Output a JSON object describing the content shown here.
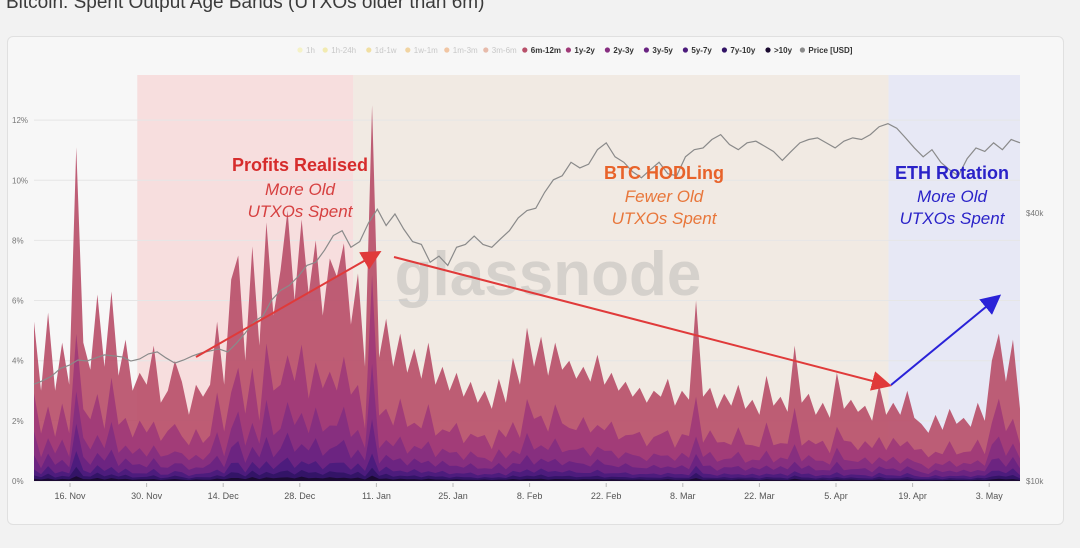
{
  "page": {
    "title": "Bitcoin: Spent Output Age Bands (UTXOs older than 6m)"
  },
  "watermark": "glassnode",
  "annotations": {
    "profits": {
      "title": "Profits Realised",
      "line1": "More Old",
      "line2": "UTXOs Spent",
      "title_color": "#d62c2c",
      "body_color": "#d64040"
    },
    "hodl": {
      "title": "BTC HODLing",
      "line1": "Fewer Old",
      "line2": "UTXOs Spent",
      "title_color": "#e8632a",
      "body_color": "#e8763a"
    },
    "eth": {
      "title": "ETH Rotation",
      "line1": "More Old",
      "line2": "UTXOs Spent",
      "title_color": "#2a22c8",
      "body_color": "#2a22c8"
    }
  },
  "chart_data": {
    "type": "area",
    "title": "Bitcoin: Spent Output Age Bands (UTXOs older than 6m)",
    "x_ticks": [
      "16. Nov",
      "30. Nov",
      "14. Dec",
      "28. Dec",
      "11. Jan",
      "25. Jan",
      "8. Feb",
      "22. Feb",
      "8. Mar",
      "22. Mar",
      "5. Apr",
      "19. Apr",
      "3. May"
    ],
    "y_left_ticks": [
      "0%",
      "2%",
      "4%",
      "6%",
      "8%",
      "10%",
      "12%"
    ],
    "y_left_range": [
      0,
      13.5
    ],
    "y_right_ticks": [
      "$10k",
      "$40k"
    ],
    "y_right_scale": "log",
    "legend_position": "top",
    "legend": [
      {
        "label": "1h",
        "color": "#f2ec8c",
        "active": false
      },
      {
        "label": "1h-24h",
        "color": "#eadc5a",
        "active": false
      },
      {
        "label": "1d-1w",
        "color": "#e8c23a",
        "active": false
      },
      {
        "label": "1w-1m",
        "color": "#e8a83a",
        "active": false
      },
      {
        "label": "1m-3m",
        "color": "#e88a3e",
        "active": false
      },
      {
        "label": "3m-6m",
        "color": "#d2704e",
        "active": false
      },
      {
        "label": "6m-12m",
        "color": "#b8506a",
        "active": true
      },
      {
        "label": "1y-2y",
        "color": "#a03a78",
        "active": true
      },
      {
        "label": "2y-3y",
        "color": "#862e80",
        "active": true
      },
      {
        "label": "3y-5y",
        "color": "#6a2482",
        "active": true
      },
      {
        "label": "5y-7y",
        "color": "#4c1c7c",
        "active": true
      },
      {
        "label": "7y-10y",
        "color": "#321466",
        "active": true
      },
      {
        "label": ">10y",
        "color": "#1a0a30",
        "active": true
      },
      {
        "label": "Price [USD]",
        "color": "#8a8a8a",
        "active": true
      }
    ],
    "band_fractions": [
      0.5,
      0.22,
      0.12,
      0.08,
      0.04,
      0.025,
      0.015
    ],
    "band_colors": [
      "#b8506a",
      "#a03a78",
      "#862e80",
      "#6a2482",
      "#4c1c7c",
      "#321466",
      "#1a0a30"
    ],
    "regions": [
      {
        "name": "Profits Realised",
        "x_start": 11,
        "x_end": 34,
        "color": "#f6dada"
      },
      {
        "name": "BTC HODLing",
        "x_start": 34,
        "x_end": 91,
        "color": "#f0e8e0"
      },
      {
        "name": "ETH Rotation",
        "x_start": 91,
        "x_end": 105,
        "color": "#e4e6f4"
      }
    ],
    "total_pct": [
      5.3,
      3.0,
      5.6,
      3.0,
      4.6,
      3.2,
      11.1,
      4.6,
      3.7,
      6.2,
      3.8,
      6.3,
      3.5,
      4.7,
      3.0,
      3.6,
      3.2,
      4.5,
      2.6,
      3.0,
      4.0,
      3.3,
      2.2,
      3.2,
      2.8,
      3.2,
      5.3,
      3.2,
      6.7,
      7.5,
      4.0,
      7.8,
      4.5,
      8.6,
      5.5,
      7.0,
      9.0,
      6.0,
      8.7,
      6.2,
      8.0,
      5.5,
      7.4,
      6.8,
      7.9,
      5.2,
      6.9,
      3.8,
      12.5,
      4.1,
      5.4,
      3.8,
      4.9,
      3.6,
      4.4,
      3.4,
      4.6,
      3.2,
      3.8,
      3.0,
      3.6,
      2.8,
      3.3,
      2.6,
      3.0,
      2.4,
      3.4,
      2.6,
      4.1,
      3.2,
      5.1,
      3.8,
      4.8,
      3.5,
      4.6,
      3.7,
      4.0,
      3.4,
      3.8,
      3.3,
      4.2,
      3.2,
      3.6,
      3.0,
      3.3,
      2.8,
      3.1,
      2.6,
      3.0,
      2.8,
      3.4,
      2.5,
      3.0,
      2.7,
      6.0,
      2.8,
      3.1,
      2.4,
      2.9,
      2.5,
      3.2,
      2.4,
      2.7,
      2.2,
      3.5,
      2.5,
      2.8,
      2.3,
      4.5,
      2.6,
      2.9,
      2.2,
      2.6,
      2.1,
      3.6,
      2.4,
      2.7,
      2.3,
      2.5,
      2.0,
      3.2,
      2.2,
      2.6,
      2.2,
      3.0,
      2.1,
      1.9,
      1.6,
      2.2,
      1.7,
      2.4,
      1.9,
      2.1,
      1.8,
      2.6,
      2.0,
      4.0,
      4.9,
      3.3,
      4.7,
      2.4
    ],
    "price_usd": [
      16500,
      16800,
      17200,
      17900,
      18200,
      18700,
      18600,
      18900,
      19200,
      19100,
      19000,
      18600,
      18800,
      19300,
      19500,
      18900,
      18400,
      18700,
      19100,
      19400,
      19600,
      19800,
      19500,
      20400,
      21500,
      22800,
      23500,
      25500,
      26800,
      27500,
      28800,
      30500,
      31000,
      33000,
      35600,
      36500,
      33500,
      34500,
      38000,
      40800,
      37500,
      39800,
      36800,
      34500,
      34000,
      31000,
      32000,
      30500,
      33500,
      34000,
      35500,
      34000,
      33500,
      35000,
      36500,
      39000,
      40500,
      41000,
      44500,
      47500,
      48500,
      52000,
      50500,
      51500,
      55500,
      57500,
      53500,
      52000,
      49500,
      48000,
      50000,
      52000,
      49000,
      48500,
      53500,
      55500,
      56000,
      58500,
      60000,
      57000,
      55500,
      57500,
      58000,
      56500,
      55000,
      52500,
      55000,
      57500,
      58500,
      59000,
      57500,
      56000,
      58000,
      59000,
      58500,
      60000,
      62500,
      63500,
      62000,
      59000,
      56000,
      53500,
      55500,
      52000,
      50000,
      48500,
      53000,
      56000,
      55000,
      57500,
      55500,
      58500,
      57500
    ]
  }
}
